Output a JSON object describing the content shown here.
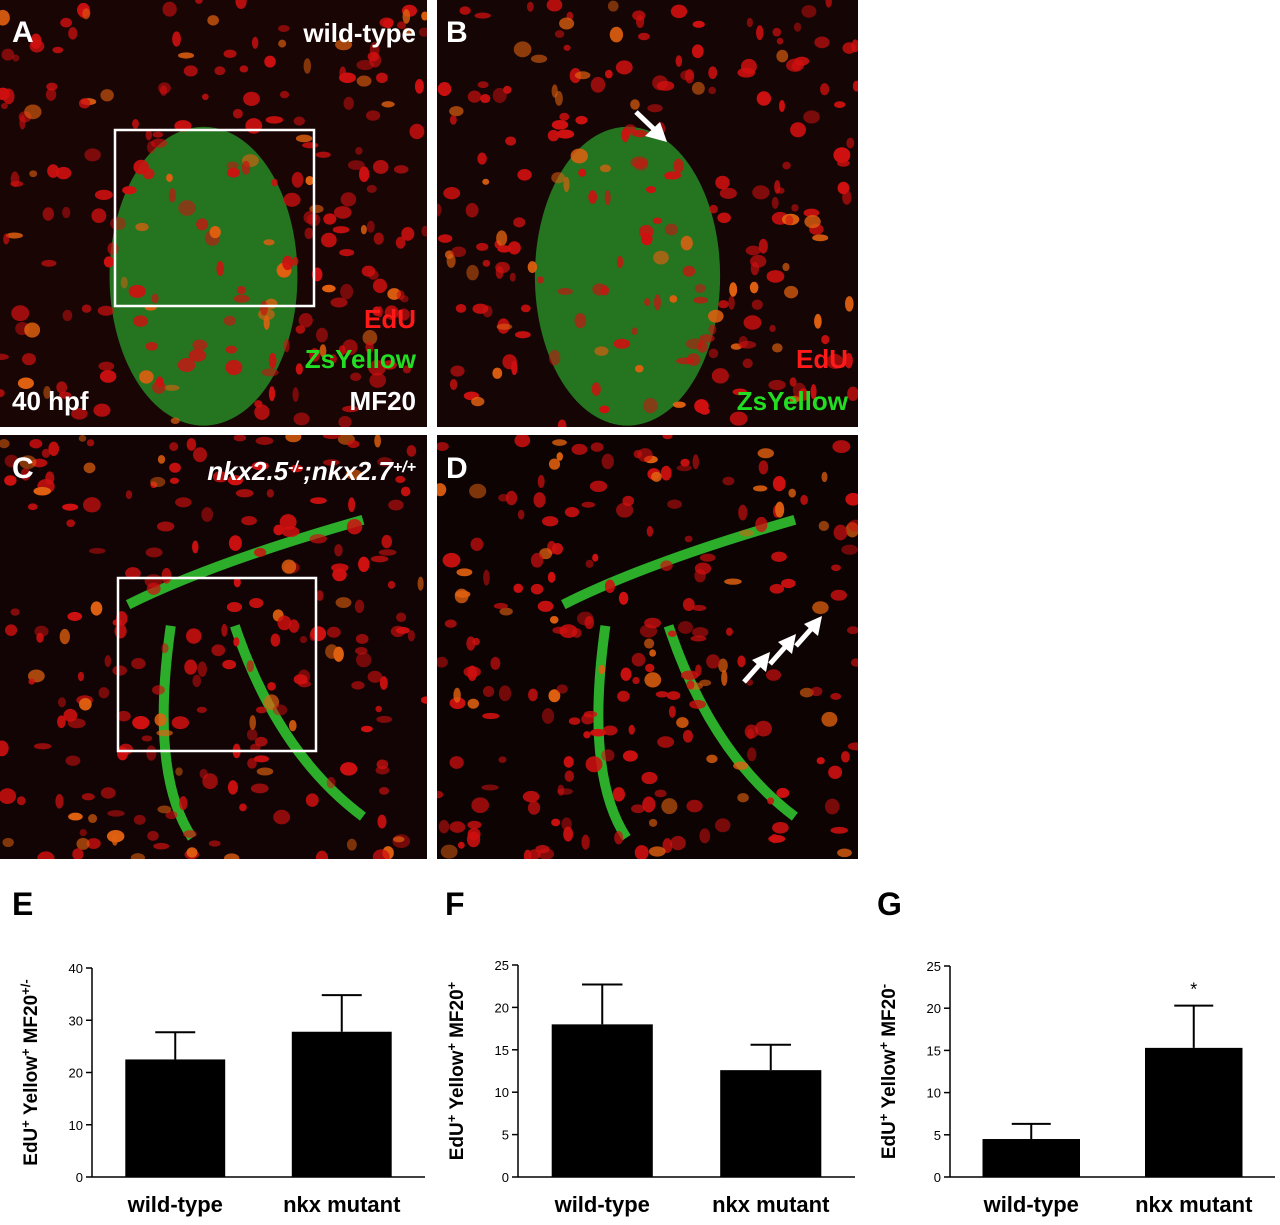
{
  "panels": {
    "a": {
      "letter": "A",
      "genotype": "wild-type",
      "stain1": "EdU",
      "stain2": "ZsYellow",
      "stage": "40 hpf",
      "stain3": "MF20"
    },
    "b": {
      "letter": "B",
      "stain1": "EdU",
      "stain2": "ZsYellow"
    },
    "c": {
      "letter": "C",
      "genotype": [
        [
          "nkx2.5",
          "-/-"
        ],
        [
          ";nkx2.7",
          "+/+"
        ]
      ]
    },
    "d": {
      "letter": "D"
    }
  },
  "chart_data": [
    {
      "type": "bar",
      "title": "E",
      "ylabel": [
        [
          "EdU",
          "+"
        ],
        [
          "Yellow",
          "+"
        ],
        [
          "MF20",
          "+/-"
        ]
      ],
      "categories": [
        "wild-type",
        "nkx mutant"
      ],
      "values": [
        22.5,
        27.8
      ],
      "errors": [
        5.2,
        7.0
      ],
      "color": "#000000",
      "ylim": [
        0,
        40
      ],
      "yticks": [
        0,
        10,
        20,
        30,
        40
      ]
    },
    {
      "type": "bar",
      "title": "F",
      "ylabel": [
        [
          "EdU",
          "+"
        ],
        [
          "Yellow",
          "+"
        ],
        [
          "MF20",
          "+"
        ]
      ],
      "categories": [
        "wild-type",
        "nkx mutant"
      ],
      "values": [
        18.0,
        12.6
      ],
      "errors": [
        4.7,
        3.0
      ],
      "color": "#000000",
      "ylim": [
        0,
        25
      ],
      "yticks": [
        0,
        5,
        10,
        15,
        20,
        25
      ]
    },
    {
      "type": "bar",
      "title": "G",
      "ylabel": [
        [
          "EdU",
          "+"
        ],
        [
          "Yellow",
          "+"
        ],
        [
          "MF20",
          "-"
        ]
      ],
      "categories": [
        "wild-type",
        "nkx mutant"
      ],
      "values": [
        4.5,
        15.3
      ],
      "errors": [
        1.8,
        5.0
      ],
      "color": "#000000",
      "ylim": [
        0,
        25
      ],
      "yticks": [
        0,
        5,
        10,
        15,
        20,
        25
      ],
      "annotations": [
        {
          "category": 1,
          "text": "*"
        }
      ]
    }
  ]
}
